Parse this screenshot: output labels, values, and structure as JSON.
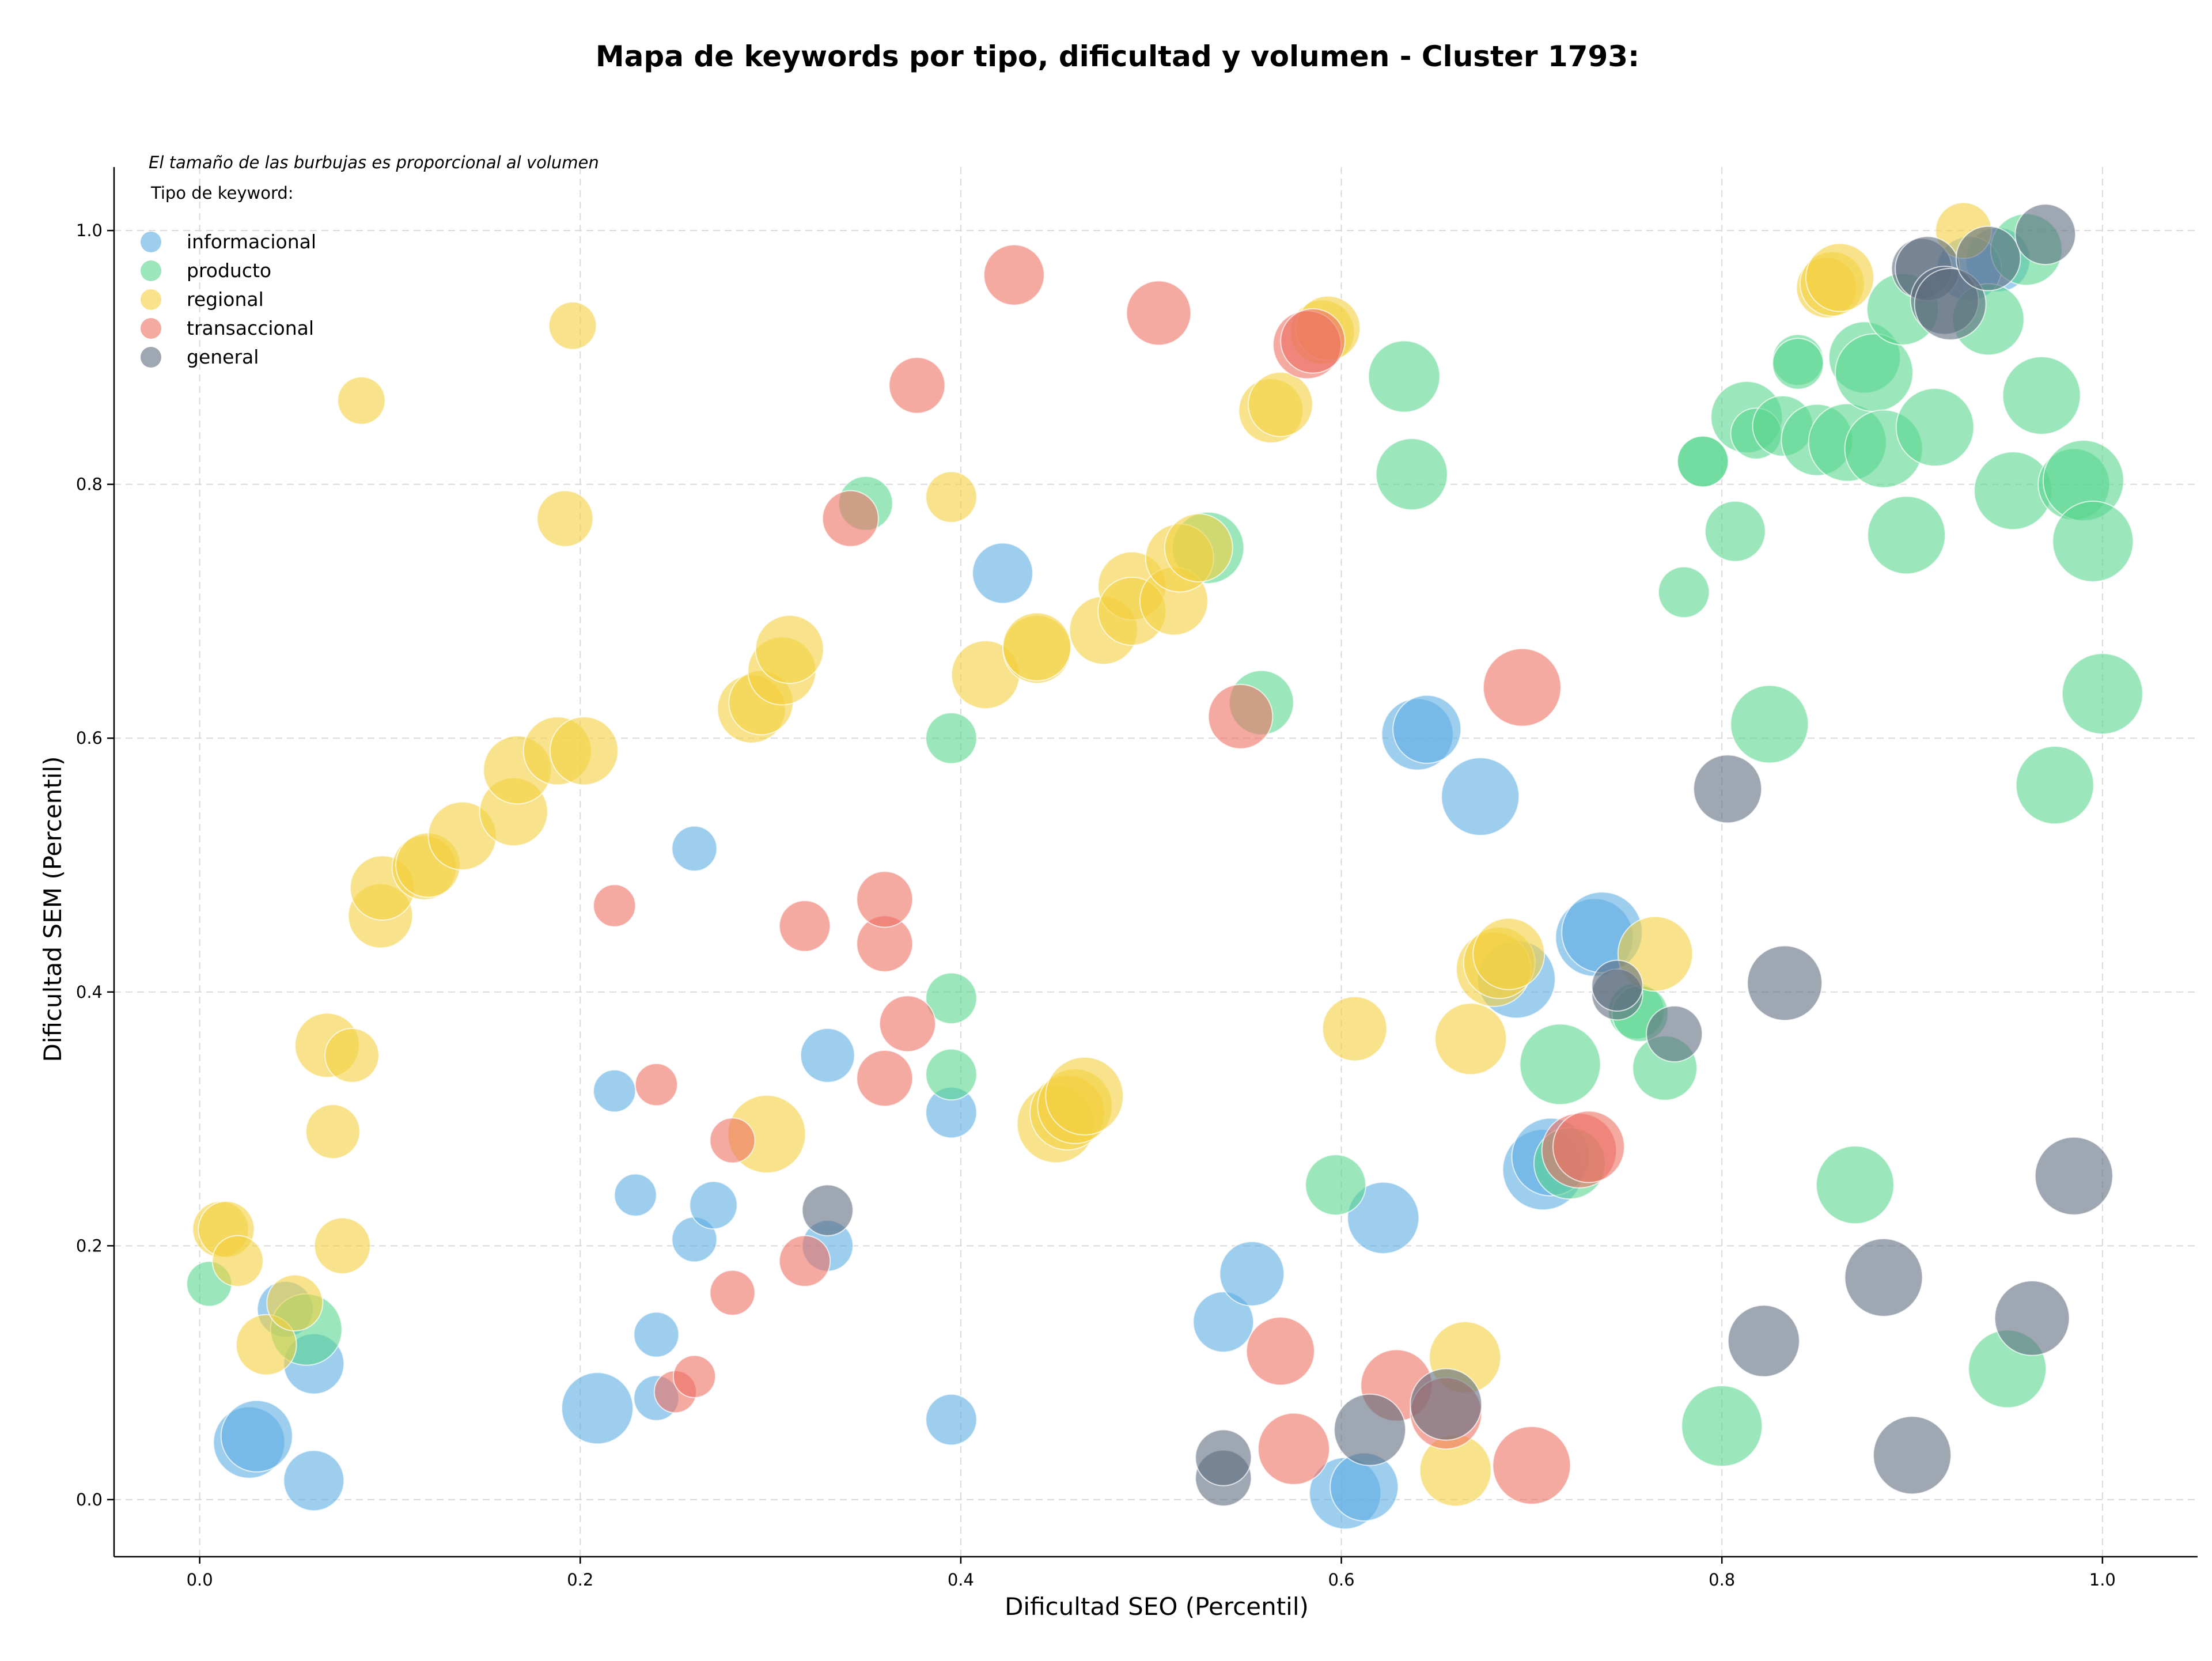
{
  "chart_data": {
    "type": "scatter",
    "title": "Mapa de keywords por tipo, dificultad y volumen - Cluster 1793:",
    "xlabel": "Dificultad SEO (Percentil)",
    "ylabel": "Dificultad SEM (Percentil)",
    "xlim": [
      -0.045,
      1.05
    ],
    "ylim": [
      -0.045,
      1.05
    ],
    "xticks": [
      "0.0",
      "0.2",
      "0.4",
      "0.6",
      "0.8",
      "1.0"
    ],
    "yticks": [
      "0.0",
      "0.2",
      "0.4",
      "0.6",
      "0.8",
      "1.0"
    ],
    "grid": true,
    "note": "El tamaño de las burbujas es proporcional al volumen",
    "legend_title": "Tipo de keyword:",
    "legend_position": "top-left",
    "series": [
      {
        "name": "informacional",
        "color": "#5dade2",
        "points": [
          [
            0.026,
            0.045,
            4
          ],
          [
            0.03,
            0.05,
            4
          ],
          [
            0.06,
            0.015,
            2.5
          ],
          [
            0.06,
            0.107,
            2.5
          ],
          [
            0.045,
            0.15,
            2
          ],
          [
            0.209,
            0.072,
            4
          ],
          [
            0.24,
            0.08,
            1
          ],
          [
            0.24,
            0.13,
            1
          ],
          [
            0.26,
            0.205,
            1
          ],
          [
            0.27,
            0.232,
            1.2
          ],
          [
            0.229,
            0.24,
            0.8
          ],
          [
            0.218,
            0.322,
            0.8
          ],
          [
            0.26,
            0.513,
            1
          ],
          [
            0.33,
            0.2,
            1.5
          ],
          [
            0.33,
            0.35,
            1.8
          ],
          [
            0.395,
            0.305,
            1.5
          ],
          [
            0.395,
            0.063,
            1.5
          ],
          [
            0.422,
            0.73,
            2.5
          ],
          [
            0.538,
            0.14,
            2.5
          ],
          [
            0.553,
            0.178,
            3
          ],
          [
            0.602,
            0.005,
            4
          ],
          [
            0.612,
            0.01,
            3.5
          ],
          [
            0.622,
            0.222,
            4
          ],
          [
            0.64,
            0.603,
            4
          ],
          [
            0.645,
            0.607,
            3.5
          ],
          [
            0.673,
            0.554,
            5
          ],
          [
            0.692,
            0.41,
            5
          ],
          [
            0.706,
            0.26,
            5.5
          ],
          [
            0.71,
            0.27,
            5
          ],
          [
            0.733,
            0.443,
            5
          ],
          [
            0.737,
            0.447,
            5.5
          ],
          [
            0.945,
            0.977,
            3
          ],
          [
            0.93,
            0.97,
            3
          ]
        ]
      },
      {
        "name": "producto",
        "color": "#58d68d",
        "points": [
          [
            0.005,
            0.17,
            1
          ],
          [
            0.056,
            0.134,
            4
          ],
          [
            0.35,
            0.785,
            1.8
          ],
          [
            0.395,
            0.6,
            1.5
          ],
          [
            0.395,
            0.395,
            1.5
          ],
          [
            0.395,
            0.335,
            1.5
          ],
          [
            0.53,
            0.75,
            4
          ],
          [
            0.558,
            0.628,
            3
          ],
          [
            0.597,
            0.248,
            2.5
          ],
          [
            0.633,
            0.885,
            4
          ],
          [
            0.637,
            0.808,
            4
          ],
          [
            0.715,
            0.343,
            5.5
          ],
          [
            0.72,
            0.265,
            4
          ],
          [
            0.755,
            0.385,
            2
          ],
          [
            0.757,
            0.383,
            2
          ],
          [
            0.77,
            0.34,
            3
          ],
          [
            0.78,
            0.715,
            1.5
          ],
          [
            0.79,
            0.818,
            1.5
          ],
          [
            0.79,
            0.818,
            1.5
          ],
          [
            0.8,
            0.058,
            5.5
          ],
          [
            0.807,
            0.763,
            2.5
          ],
          [
            0.813,
            0.853,
            4
          ],
          [
            0.818,
            0.84,
            1.5
          ],
          [
            0.825,
            0.611,
            5
          ],
          [
            0.832,
            0.846,
            2.5
          ],
          [
            0.84,
            0.898,
            1.5
          ],
          [
            0.84,
            0.895,
            1.5
          ],
          [
            0.85,
            0.835,
            4
          ],
          [
            0.866,
            0.833,
            5
          ],
          [
            0.87,
            0.248,
            5
          ],
          [
            0.875,
            0.9,
            4
          ],
          [
            0.88,
            0.888,
            5
          ],
          [
            0.885,
            0.828,
            5
          ],
          [
            0.895,
            0.938,
            4
          ],
          [
            0.897,
            0.76,
            5
          ],
          [
            0.912,
            0.845,
            5
          ],
          [
            0.94,
            0.93,
            4
          ],
          [
            0.95,
            0.103,
            5
          ],
          [
            0.953,
            0.795,
            5
          ],
          [
            0.96,
            0.985,
            4
          ],
          [
            0.968,
            0.87,
            5
          ],
          [
            0.975,
            0.563,
            5
          ],
          [
            0.985,
            0.8,
            4
          ],
          [
            0.99,
            0.803,
            5.5
          ],
          [
            0.995,
            0.755,
            5.5
          ],
          [
            1.0,
            0.635,
            5.5
          ]
        ]
      },
      {
        "name": "regional",
        "color": "#f4d03f",
        "points": [
          [
            0.011,
            0.213,
            2
          ],
          [
            0.014,
            0.213,
            2
          ],
          [
            0.02,
            0.188,
            1.5
          ],
          [
            0.035,
            0.122,
            2.5
          ],
          [
            0.05,
            0.155,
            2
          ],
          [
            0.067,
            0.358,
            3
          ],
          [
            0.07,
            0.29,
            1.8
          ],
          [
            0.075,
            0.2,
            2
          ],
          [
            0.08,
            0.35,
            1.8
          ],
          [
            0.085,
            0.866,
            1.2
          ],
          [
            0.095,
            0.46,
            3
          ],
          [
            0.096,
            0.482,
            3
          ],
          [
            0.118,
            0.498,
            3
          ],
          [
            0.12,
            0.5,
            3
          ],
          [
            0.138,
            0.523,
            3.5
          ],
          [
            0.165,
            0.542,
            3.5
          ],
          [
            0.167,
            0.575,
            3.5
          ],
          [
            0.188,
            0.59,
            3.5
          ],
          [
            0.192,
            0.773,
            2
          ],
          [
            0.196,
            0.925,
            1.2
          ],
          [
            0.202,
            0.59,
            3.5
          ],
          [
            0.29,
            0.623,
            3.5
          ],
          [
            0.295,
            0.628,
            3
          ],
          [
            0.298,
            0.288,
            5
          ],
          [
            0.306,
            0.653,
            3.5
          ],
          [
            0.31,
            0.67,
            3.5
          ],
          [
            0.395,
            0.79,
            1.5
          ],
          [
            0.413,
            0.65,
            3.5
          ],
          [
            0.44,
            0.67,
            3.5
          ],
          [
            0.44,
            0.672,
            3.5
          ],
          [
            0.45,
            0.296,
            5
          ],
          [
            0.456,
            0.305,
            4.5
          ],
          [
            0.46,
            0.31,
            4.5
          ],
          [
            0.465,
            0.318,
            5
          ],
          [
            0.475,
            0.685,
            3.5
          ],
          [
            0.49,
            0.72,
            3.5
          ],
          [
            0.49,
            0.7,
            3.5
          ],
          [
            0.512,
            0.708,
            3.5
          ],
          [
            0.515,
            0.742,
            3.5
          ],
          [
            0.525,
            0.75,
            3.5
          ],
          [
            0.563,
            0.858,
            3
          ],
          [
            0.568,
            0.863,
            3
          ],
          [
            0.59,
            0.92,
            3
          ],
          [
            0.593,
            0.923,
            3
          ],
          [
            0.607,
            0.371,
            3
          ],
          [
            0.66,
            0.023,
            4
          ],
          [
            0.665,
            0.112,
            4
          ],
          [
            0.668,
            0.363,
            4
          ],
          [
            0.68,
            0.418,
            4.5
          ],
          [
            0.683,
            0.423,
            4
          ],
          [
            0.688,
            0.43,
            4
          ],
          [
            0.765,
            0.43,
            4.5
          ],
          [
            0.855,
            0.955,
            2.5
          ],
          [
            0.858,
            0.958,
            3
          ],
          [
            0.862,
            0.963,
            3.5
          ],
          [
            0.927,
            1.0,
            2
          ]
        ]
      },
      {
        "name": "transaccional",
        "color": "#ec7063",
        "points": [
          [
            0.218,
            0.468,
            0.8
          ],
          [
            0.24,
            0.327,
            0.8
          ],
          [
            0.25,
            0.085,
            0.8
          ],
          [
            0.26,
            0.097,
            0.8
          ],
          [
            0.28,
            0.163,
            1
          ],
          [
            0.28,
            0.283,
            1
          ],
          [
            0.318,
            0.188,
            1.5
          ],
          [
            0.318,
            0.452,
            1.5
          ],
          [
            0.342,
            0.773,
            2
          ],
          [
            0.36,
            0.332,
            2
          ],
          [
            0.36,
            0.438,
            2
          ],
          [
            0.36,
            0.473,
            2
          ],
          [
            0.372,
            0.375,
            2
          ],
          [
            0.377,
            0.878,
            2
          ],
          [
            0.428,
            0.965,
            2.5
          ],
          [
            0.504,
            0.935,
            3
          ],
          [
            0.547,
            0.617,
            3
          ],
          [
            0.568,
            0.117,
            3.5
          ],
          [
            0.575,
            0.04,
            4
          ],
          [
            0.582,
            0.91,
            3.5
          ],
          [
            0.585,
            0.913,
            3
          ],
          [
            0.629,
            0.09,
            4
          ],
          [
            0.655,
            0.068,
            4
          ],
          [
            0.695,
            0.64,
            5
          ],
          [
            0.7,
            0.027,
            5
          ],
          [
            0.725,
            0.275,
            4.5
          ],
          [
            0.73,
            0.278,
            4
          ]
        ]
      },
      {
        "name": "general",
        "color": "#5d6d7e",
        "points": [
          [
            0.33,
            0.228,
            1.5
          ],
          [
            0.538,
            0.017,
            2
          ],
          [
            0.538,
            0.033,
            2
          ],
          [
            0.615,
            0.055,
            4
          ],
          [
            0.655,
            0.075,
            4
          ],
          [
            0.745,
            0.398,
            1.5
          ],
          [
            0.745,
            0.405,
            1.5
          ],
          [
            0.775,
            0.367,
            2
          ],
          [
            0.803,
            0.56,
            3.5
          ],
          [
            0.822,
            0.125,
            4
          ],
          [
            0.833,
            0.407,
            4.5
          ],
          [
            0.885,
            0.175,
            5
          ],
          [
            0.9,
            0.035,
            5
          ],
          [
            0.905,
            0.97,
            2.5
          ],
          [
            0.908,
            0.97,
            3
          ],
          [
            0.917,
            0.945,
            3.5
          ],
          [
            0.92,
            0.942,
            4
          ],
          [
            0.94,
            0.978,
            3
          ],
          [
            0.963,
            0.143,
            4.5
          ],
          [
            0.97,
            0.997,
            2.5
          ],
          [
            0.985,
            0.255,
            5
          ]
        ]
      }
    ]
  }
}
